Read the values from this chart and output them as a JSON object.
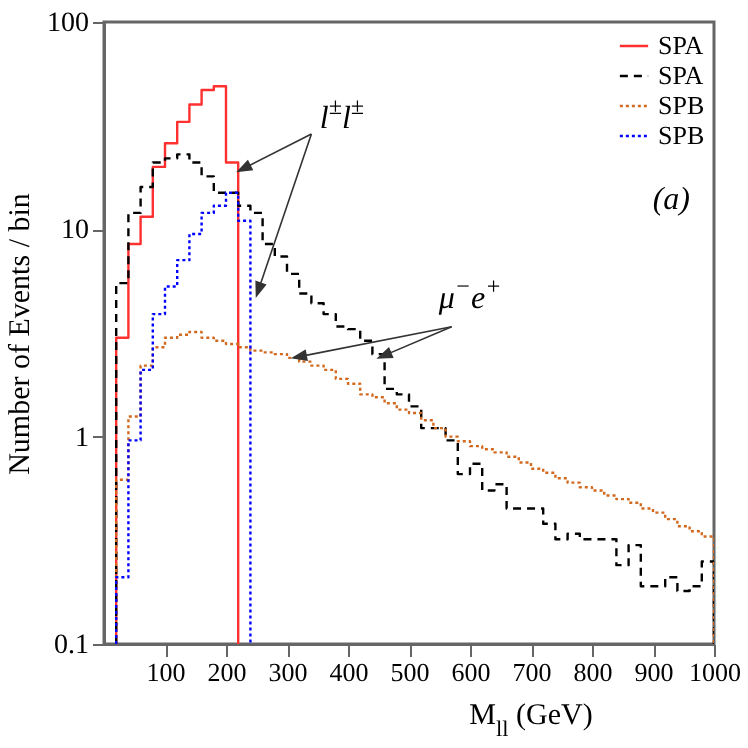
{
  "chart_data": {
    "type": "histogram",
    "xlabel": "M$_{ll}$ (GeV)",
    "ylabel": "Number of Events / bin",
    "annotations": [
      "l$^{±}$l$^{±}$",
      "μ$^{−}$e$^{+}$",
      "(a)"
    ],
    "bins": [
      20,
      40,
      60,
      80,
      100,
      120,
      140,
      160,
      180,
      200,
      220,
      240,
      260,
      280,
      300,
      320,
      340,
      360,
      380,
      400,
      420,
      440,
      460,
      480,
      500,
      520,
      540,
      560,
      580,
      600,
      620,
      640,
      660,
      680,
      700,
      720,
      740,
      760,
      780,
      800,
      820,
      840,
      860,
      880,
      900,
      920,
      940,
      960,
      980,
      1000
    ],
    "series": [
      {
        "name": "SPA",
        "color": "#ff3030",
        "line_style": "solid",
        "bins": [
          20,
          40,
          60,
          80,
          100,
          120,
          140,
          160,
          180,
          200,
          220
        ],
        "values": [
          3,
          8.5,
          11.5,
          20,
          26,
          33,
          40,
          47,
          49,
          21
        ]
      },
      {
        "name": "SPA",
        "color": "#000000",
        "line_style": "dashed",
        "values": [
          5.5,
          12,
          16,
          21,
          22,
          23,
          21,
          18,
          15,
          15,
          13,
          12,
          8.5,
          7.4,
          6.1,
          4.9,
          4.4,
          3.9,
          3.4,
          3.3,
          2.9,
          2.5,
          1.7,
          1.6,
          1.4,
          1.1,
          1.1,
          0.96,
          0.66,
          0.74,
          0.55,
          0.59,
          0.45,
          0.45,
          0.45,
          0.38,
          0.32,
          0.34,
          0.32,
          0.32,
          0.32,
          0.24,
          0.3,
          0.19,
          0.19,
          0.21,
          0.18,
          0.19,
          0.25
        ]
      },
      {
        "name": "SPB",
        "color": "#d2691e",
        "line_style": "dotted",
        "values": [
          0.62,
          1.25,
          2.2,
          2.7,
          3,
          3.1,
          3.2,
          3,
          2.9,
          2.8,
          2.7,
          2.6,
          2.55,
          2.5,
          2.4,
          2.3,
          2.2,
          2.1,
          1.9,
          1.8,
          1.6,
          1.55,
          1.45,
          1.35,
          1.3,
          1.2,
          1.1,
          1,
          0.95,
          0.9,
          0.87,
          0.84,
          0.8,
          0.75,
          0.7,
          0.67,
          0.63,
          0.6,
          0.57,
          0.55,
          0.52,
          0.5,
          0.48,
          0.45,
          0.43,
          0.4,
          0.37,
          0.35,
          0.33
        ]
      },
      {
        "name": "SPB",
        "color": "#0000ff",
        "line_style": "dotted",
        "bins": [
          20,
          40,
          60,
          80,
          100,
          120,
          140,
          160,
          180,
          200,
          220,
          240
        ],
        "values": [
          0.21,
          0.96,
          2.1,
          3.9,
          5.3,
          7.1,
          9.5,
          12,
          13,
          15,
          11
        ]
      }
    ],
    "xlim": [
      0,
      1000
    ],
    "xticks": [
      100,
      200,
      300,
      400,
      500,
      600,
      700,
      800,
      900,
      1000
    ],
    "ylim": [
      0.1,
      100
    ],
    "yticks": [
      0.1,
      1,
      10,
      100
    ],
    "log": "y",
    "grid": false,
    "legend": "top right"
  }
}
